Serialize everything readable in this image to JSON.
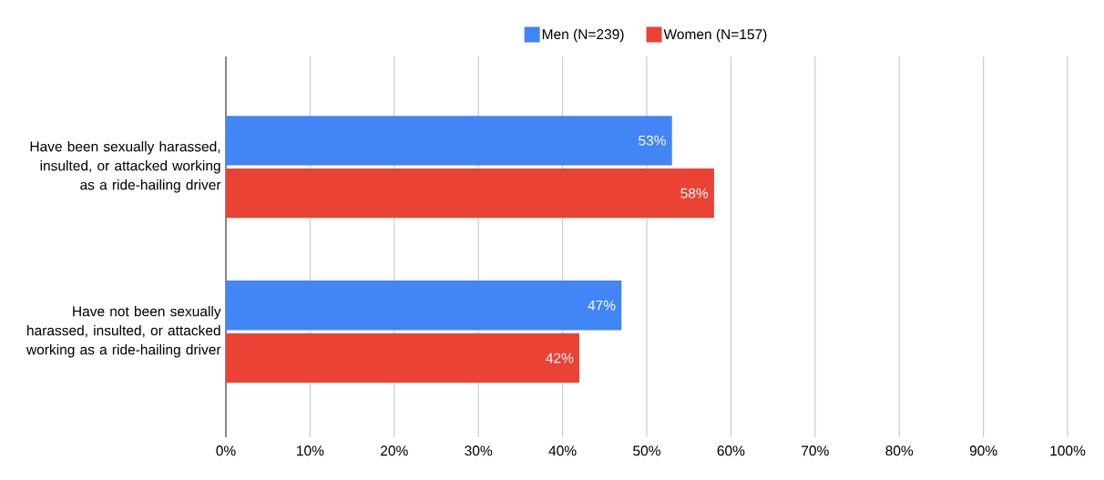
{
  "chart_data": {
    "type": "bar",
    "orientation": "horizontal",
    "categories": [
      "Have been sexually harassed, insulted, or attacked working as a ride-hailing driver",
      "Have not been sexually harassed, insulted, or attacked working as a ride-hailing driver"
    ],
    "series": [
      {
        "name": "Men (N=239)",
        "color": "#4285f4",
        "values": [
          53,
          47
        ],
        "value_labels": [
          "53%",
          "47%"
        ]
      },
      {
        "name": "Women (N=157)",
        "color": "#ea4335",
        "values": [
          58,
          42
        ],
        "value_labels": [
          "58%",
          "42%"
        ]
      }
    ],
    "xlim": [
      0,
      100
    ],
    "xticks": [
      {
        "value": 0,
        "label": "0%"
      },
      {
        "value": 10,
        "label": "10%"
      },
      {
        "value": 20,
        "label": "20%"
      },
      {
        "value": 30,
        "label": "30%"
      },
      {
        "value": 40,
        "label": "40%"
      },
      {
        "value": 50,
        "label": "50%"
      },
      {
        "value": 60,
        "label": "60%"
      },
      {
        "value": 70,
        "label": "70%"
      },
      {
        "value": 80,
        "label": "80%"
      },
      {
        "value": 90,
        "label": "90%"
      },
      {
        "value": 100,
        "label": "100%"
      }
    ],
    "grid": "x",
    "legend": "top"
  }
}
